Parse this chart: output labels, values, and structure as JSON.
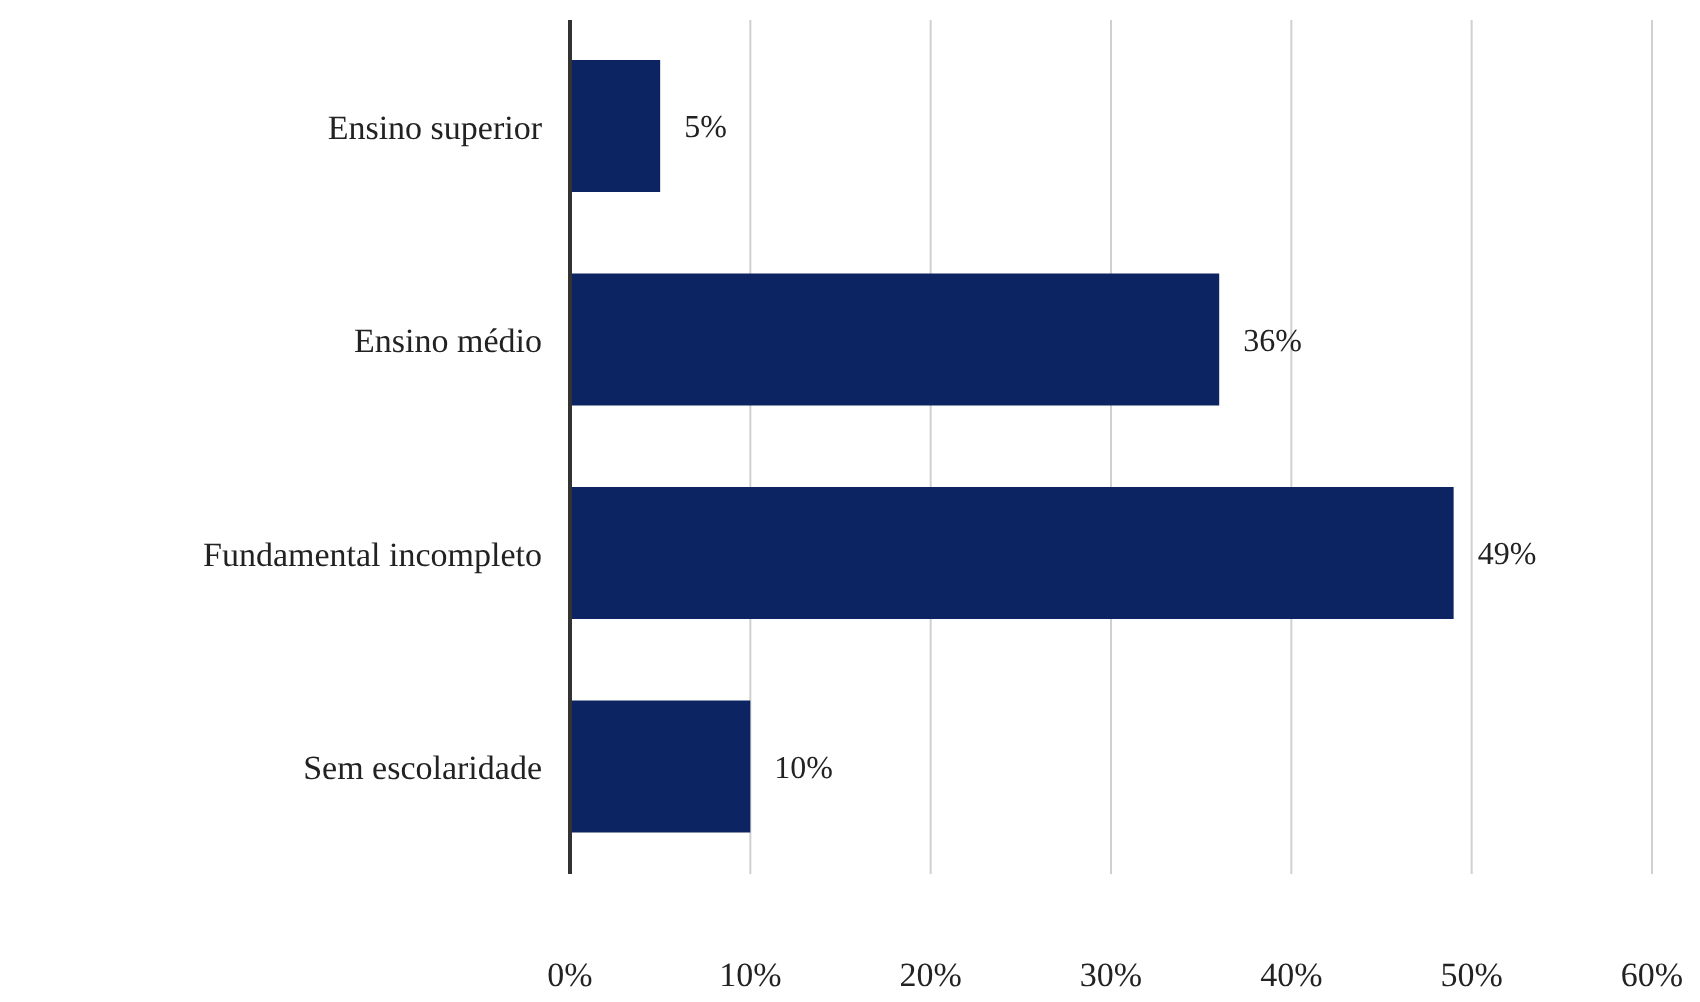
{
  "chart_data": {
    "type": "bar",
    "orientation": "horizontal",
    "categories": [
      "Ensino superior",
      "Ensino médio",
      "Fundamental incompleto",
      "Sem escolaridade"
    ],
    "values": [
      5,
      36,
      49,
      10
    ],
    "color": "#0c2461",
    "value_labels": [
      "5%",
      "36%",
      "49%",
      "10%"
    ],
    "xlim": [
      0,
      60
    ],
    "xticks": [
      {
        "value": 0,
        "label": "0%"
      },
      {
        "value": 10,
        "label": "10%"
      },
      {
        "value": 20,
        "label": "20%"
      },
      {
        "value": 30,
        "label": "30%"
      },
      {
        "value": 40,
        "label": "40%"
      },
      {
        "value": 50,
        "label": "50%"
      },
      {
        "value": 60,
        "label": "60%"
      }
    ],
    "grid": "x",
    "legend": false
  }
}
